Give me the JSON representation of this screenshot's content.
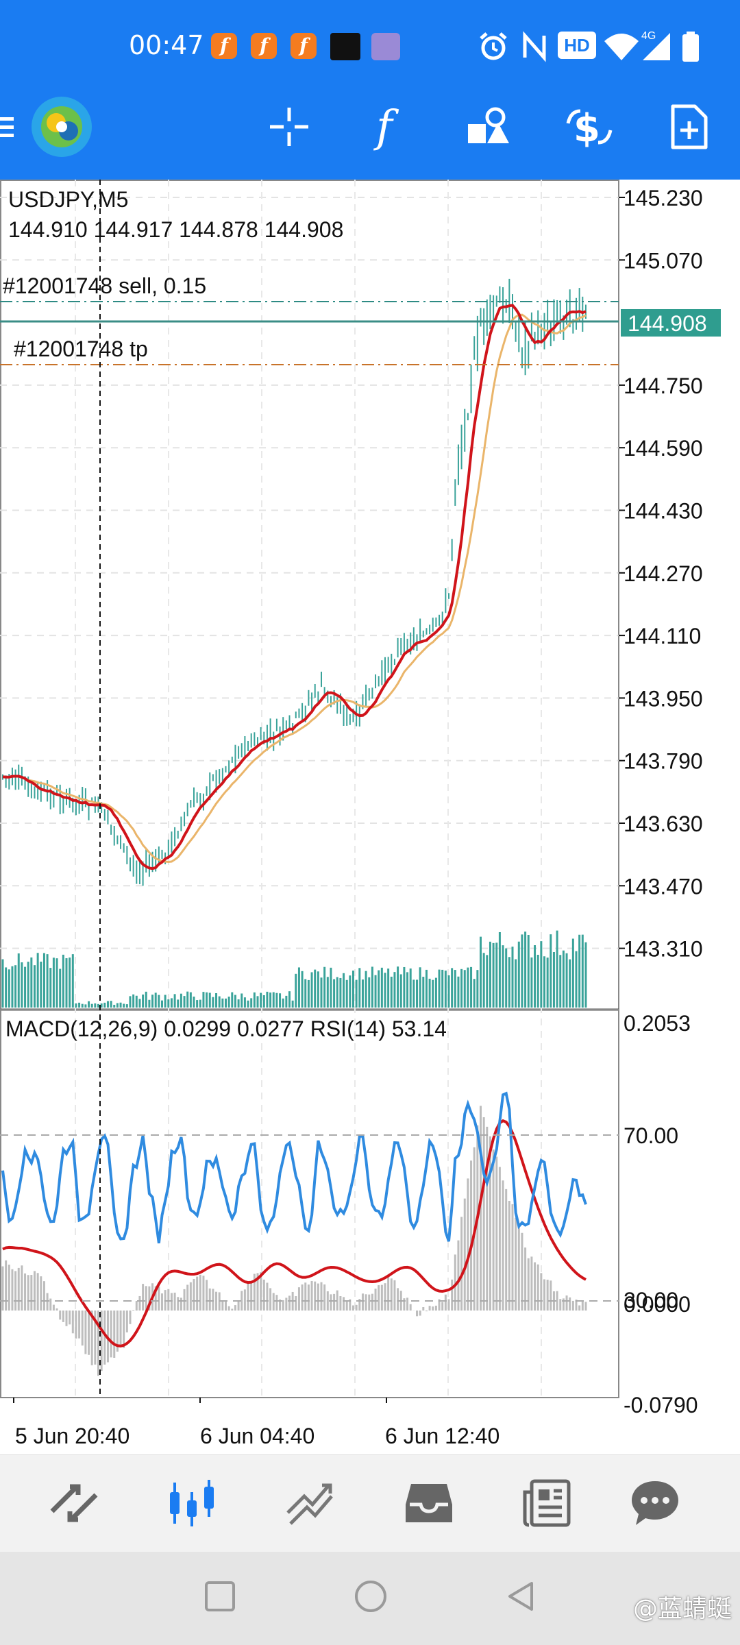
{
  "status_bar": {
    "time": "00:47",
    "network": "4G",
    "hd": "HD",
    "app_icon_glyph": "f",
    "icons": [
      "alarm-icon",
      "nfc-icon",
      "hd-icon",
      "wifi-icon",
      "signal-icon",
      "battery-icon"
    ]
  },
  "toolbar": {
    "icons": [
      "menu-icon",
      "metatrader-logo-icon",
      "crosshair-icon",
      "indicators-icon",
      "objects-icon",
      "trade-icon",
      "new-order-icon"
    ]
  },
  "chart": {
    "symbol_timeframe": "USDJPY,M5",
    "ohlc": "144.910 144.917 144.878 144.908",
    "order_line_label": "#12001748 sell, 0.15",
    "tp_line_label": "#12001748 tp",
    "current_price": "144.908",
    "price_axis": [
      "145.230",
      "145.070",
      "144.750",
      "144.590",
      "144.430",
      "144.270",
      "144.110",
      "143.950",
      "143.790",
      "143.630",
      "143.470",
      "143.310"
    ],
    "indicator_label": "MACD(12,26,9) 0.0299 0.0277 RSI(14) 53.14",
    "indicator_axis_top": "0.2053",
    "indicator_axis_70": "70.00",
    "indicator_axis_30": "30.00",
    "indicator_axis_zero": "0.0000",
    "indicator_axis_bottom": "-0.0790",
    "time_axis": [
      "5 Jun 20:40",
      "6 Jun 04:40",
      "6 Jun 12:40"
    ],
    "colors": {
      "accent": "#1a7cf2",
      "ma_fast": "#d0141a",
      "ma_slow": "#eab56a",
      "volume": "#3aa39a",
      "rsi": "#2f8be0",
      "macd_hist": "#bdbdbd",
      "price_tag": "#2f9d8f"
    }
  },
  "bottom_nav": {
    "items": [
      "quotes-icon",
      "chart-icon",
      "trade-icon",
      "history-icon",
      "news-icon",
      "messages-icon"
    ]
  },
  "system_nav": [
    "recent-apps-button",
    "home-button",
    "back-button"
  ],
  "watermark": "@蓝蜻蜓"
}
